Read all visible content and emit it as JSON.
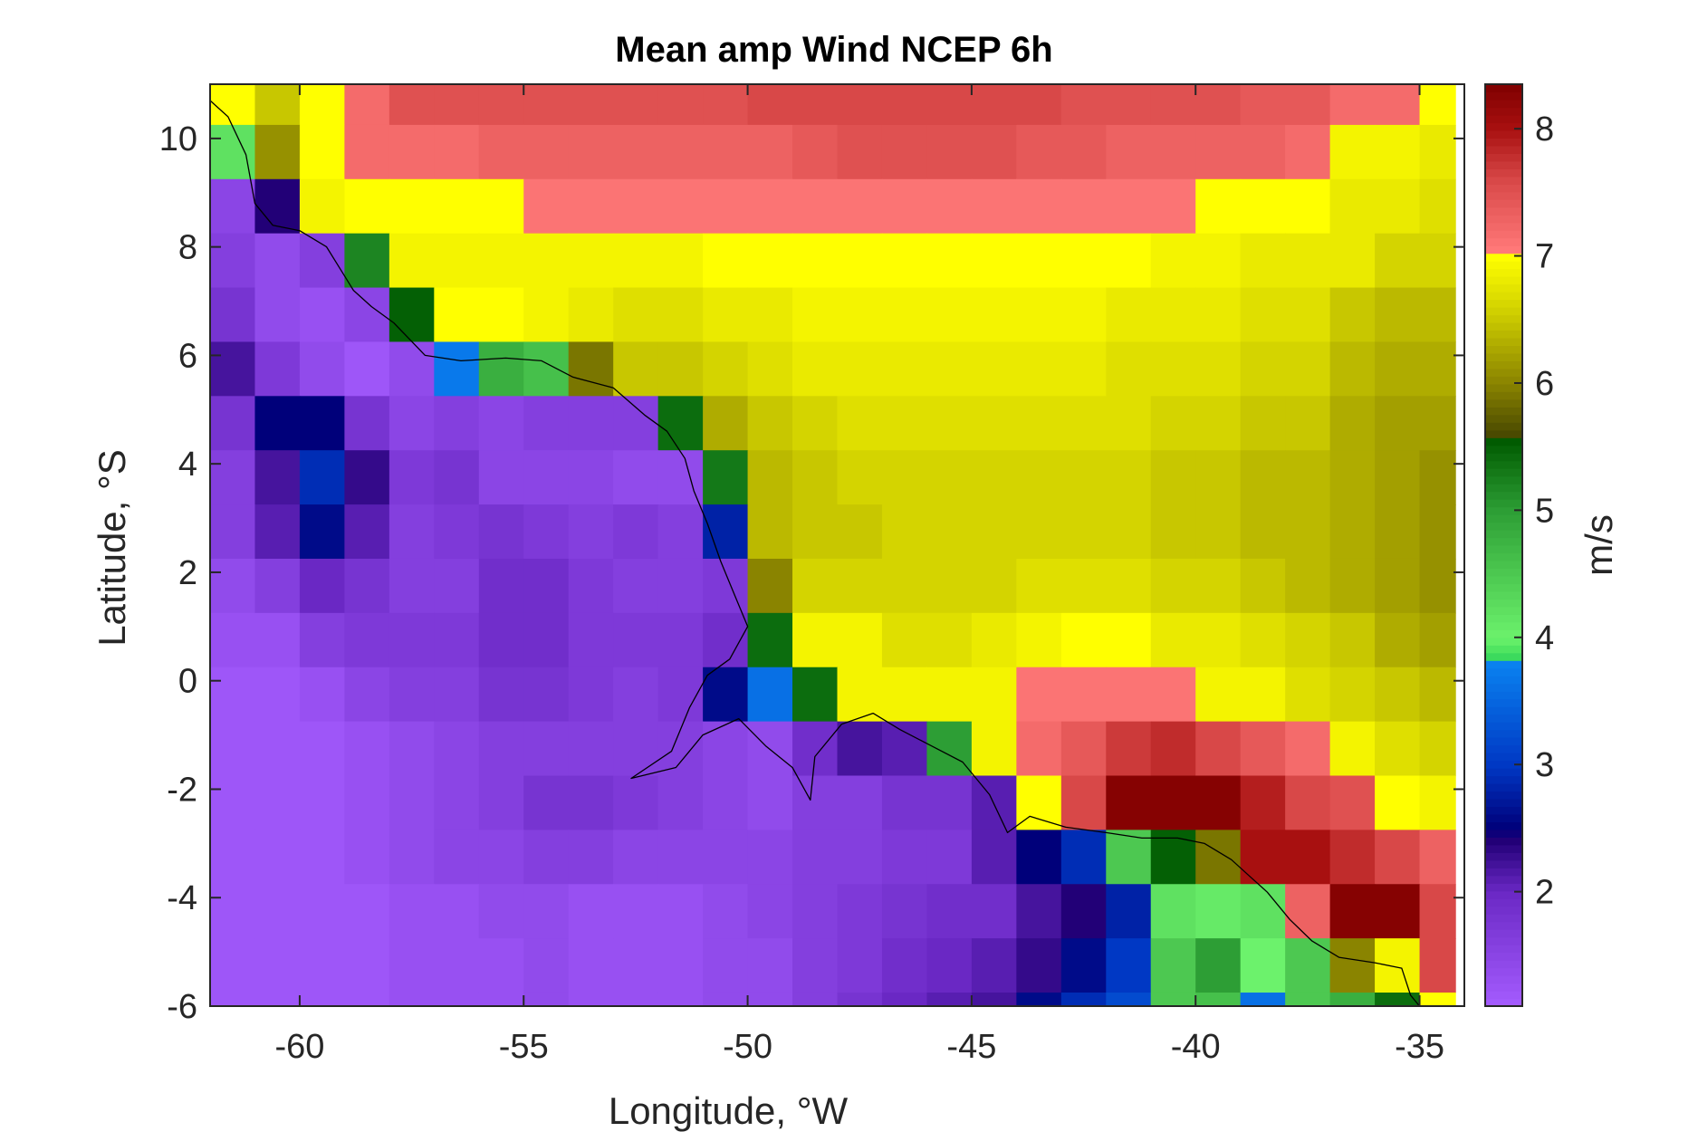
{
  "chart_data": {
    "type": "heatmap",
    "title": "Mean amp Wind NCEP 6h",
    "xlabel": "Longitude, °W",
    "ylabel": "Latitude, °S",
    "colorbar_label": "m/s",
    "xlim": [
      -62,
      -34
    ],
    "ylim": [
      -6,
      11
    ],
    "x_ticks": [
      -60,
      -55,
      -50,
      -45,
      -40,
      -35
    ],
    "x_tick_labels": [
      "-60",
      "-55",
      "-50",
      "-45",
      "-40",
      "-35"
    ],
    "y_ticks": [
      -6,
      -4,
      -2,
      0,
      2,
      4,
      6,
      8,
      10
    ],
    "y_tick_labels": [
      "-6",
      "-4",
      "-2",
      "0",
      "2",
      "4",
      "6",
      "8",
      "10"
    ],
    "colorbar_range": [
      1.1,
      8.35
    ],
    "colorbar_ticks": [
      2,
      3,
      4,
      5,
      6,
      7,
      8
    ],
    "colorbar_tick_labels": [
      "2",
      "3",
      "4",
      "5",
      "6",
      "7",
      "8"
    ],
    "color_stops": [
      {
        "value": 1.1,
        "color": "#a55cff"
      },
      {
        "value": 2.0,
        "color": "#6a28c4"
      },
      {
        "value": 2.4,
        "color": "#220077"
      },
      {
        "value": 2.5,
        "color": "#00007a"
      },
      {
        "value": 3.0,
        "color": "#0038c4"
      },
      {
        "value": 3.8,
        "color": "#0a82f0"
      },
      {
        "value": 3.85,
        "color": "#3ddc5a"
      },
      {
        "value": 4.0,
        "color": "#6cf26c"
      },
      {
        "value": 5.0,
        "color": "#2d9e35"
      },
      {
        "value": 5.55,
        "color": "#005a00"
      },
      {
        "value": 5.6,
        "color": "#4a4a00"
      },
      {
        "value": 6.0,
        "color": "#8a8400"
      },
      {
        "value": 6.6,
        "color": "#d4d400"
      },
      {
        "value": 7.0,
        "color": "#ffff00"
      },
      {
        "value": 7.05,
        "color": "#ff7878"
      },
      {
        "value": 7.6,
        "color": "#d84848"
      },
      {
        "value": 8.0,
        "color": "#a81010"
      },
      {
        "value": 8.35,
        "color": "#800000"
      }
    ],
    "grid": {
      "lon_edges": [
        -62,
        -61,
        -60,
        -59,
        -58,
        -57,
        -56,
        -55,
        -54,
        -53,
        -52,
        -51,
        -50,
        -49,
        -48,
        -47,
        -46,
        -45,
        -44,
        -43,
        -42,
        -41,
        -40,
        -39,
        -38,
        -37,
        -36,
        -35,
        -34.2
      ],
      "lat_edges": [
        11,
        10.25,
        9.25,
        8.25,
        7.25,
        6.25,
        5.25,
        4.25,
        3.25,
        2.25,
        1.25,
        0.25,
        -0.75,
        -1.75,
        -2.75,
        -3.75,
        -4.75,
        -5.75,
        -6
      ],
      "rows": [
        [
          7.0,
          6.5,
          7.0,
          7.2,
          7.5,
          7.5,
          7.5,
          7.5,
          7.5,
          7.5,
          7.5,
          7.5,
          7.6,
          7.6,
          7.6,
          7.6,
          7.6,
          7.6,
          7.6,
          7.5,
          7.5,
          7.5,
          7.5,
          7.4,
          7.4,
          7.2,
          7.2,
          7.0
        ],
        [
          4.2,
          6.1,
          7.0,
          7.2,
          7.2,
          7.2,
          7.3,
          7.3,
          7.3,
          7.3,
          7.3,
          7.3,
          7.3,
          7.4,
          7.5,
          7.5,
          7.5,
          7.5,
          7.4,
          7.4,
          7.3,
          7.3,
          7.3,
          7.3,
          7.2,
          6.9,
          6.9,
          6.8
        ],
        [
          1.5,
          2.4,
          6.9,
          7.0,
          7.0,
          7.0,
          7.0,
          7.1,
          7.1,
          7.1,
          7.1,
          7.1,
          7.1,
          7.1,
          7.1,
          7.1,
          7.1,
          7.1,
          7.1,
          7.1,
          7.1,
          7.1,
          7.0,
          7.0,
          7.0,
          6.8,
          6.8,
          6.7
        ],
        [
          1.6,
          1.4,
          1.6,
          5.2,
          6.9,
          6.9,
          6.9,
          6.9,
          6.9,
          6.9,
          6.9,
          7.0,
          7.0,
          7.0,
          7.0,
          7.0,
          7.0,
          7.0,
          7.0,
          7.0,
          7.0,
          6.9,
          6.9,
          6.8,
          6.8,
          6.8,
          6.6,
          6.6
        ],
        [
          1.8,
          1.4,
          1.3,
          1.5,
          5.5,
          7.0,
          7.0,
          6.9,
          6.8,
          6.7,
          6.7,
          6.8,
          6.8,
          6.9,
          6.9,
          6.9,
          6.9,
          6.9,
          6.9,
          6.9,
          6.8,
          6.8,
          6.8,
          6.7,
          6.7,
          6.5,
          6.4,
          6.4
        ],
        [
          2.2,
          1.7,
          1.4,
          1.2,
          1.4,
          3.7,
          4.8,
          4.6,
          5.9,
          6.5,
          6.5,
          6.6,
          6.7,
          6.8,
          6.8,
          6.8,
          6.8,
          6.8,
          6.8,
          6.8,
          6.7,
          6.7,
          6.7,
          6.6,
          6.6,
          6.4,
          6.3,
          6.3
        ],
        [
          1.8,
          2.5,
          2.5,
          1.8,
          1.5,
          1.6,
          1.5,
          1.6,
          1.6,
          1.6,
          5.4,
          6.3,
          6.5,
          6.6,
          6.7,
          6.7,
          6.7,
          6.7,
          6.7,
          6.7,
          6.7,
          6.6,
          6.6,
          6.5,
          6.5,
          6.3,
          6.2,
          6.2
        ],
        [
          1.6,
          2.2,
          2.9,
          2.3,
          1.7,
          1.8,
          1.5,
          1.5,
          1.5,
          1.4,
          1.4,
          5.3,
          6.4,
          6.5,
          6.6,
          6.6,
          6.6,
          6.6,
          6.6,
          6.6,
          6.6,
          6.5,
          6.5,
          6.4,
          6.4,
          6.3,
          6.2,
          6.1
        ],
        [
          1.6,
          2.1,
          2.6,
          2.1,
          1.6,
          1.7,
          1.8,
          1.7,
          1.6,
          1.7,
          1.6,
          2.8,
          6.4,
          6.5,
          6.5,
          6.6,
          6.6,
          6.6,
          6.6,
          6.6,
          6.6,
          6.5,
          6.5,
          6.4,
          6.4,
          6.3,
          6.2,
          6.1
        ],
        [
          1.4,
          1.6,
          2.0,
          1.8,
          1.6,
          1.6,
          1.9,
          1.9,
          1.7,
          1.6,
          1.6,
          1.7,
          6.0,
          6.6,
          6.6,
          6.6,
          6.6,
          6.6,
          6.7,
          6.7,
          6.7,
          6.6,
          6.6,
          6.5,
          6.4,
          6.3,
          6.2,
          6.1
        ],
        [
          1.3,
          1.3,
          1.6,
          1.7,
          1.7,
          1.7,
          1.9,
          1.9,
          1.7,
          1.7,
          1.7,
          1.9,
          5.4,
          6.9,
          6.9,
          6.7,
          6.7,
          6.8,
          6.9,
          7.0,
          7.0,
          6.8,
          6.8,
          6.7,
          6.6,
          6.5,
          6.3,
          6.2
        ],
        [
          1.2,
          1.2,
          1.3,
          1.5,
          1.6,
          1.6,
          1.8,
          1.8,
          1.7,
          1.6,
          1.7,
          2.6,
          3.6,
          5.4,
          6.9,
          6.9,
          6.9,
          6.9,
          7.1,
          7.1,
          7.1,
          7.1,
          6.9,
          6.9,
          6.7,
          6.6,
          6.5,
          6.4
        ],
        [
          1.2,
          1.2,
          1.2,
          1.3,
          1.4,
          1.5,
          1.6,
          1.6,
          1.6,
          1.6,
          1.6,
          1.5,
          1.4,
          1.9,
          2.2,
          2.1,
          5.0,
          6.9,
          7.2,
          7.4,
          7.7,
          7.8,
          7.6,
          7.4,
          7.2,
          6.9,
          6.7,
          6.6
        ],
        [
          1.2,
          1.2,
          1.2,
          1.3,
          1.4,
          1.5,
          1.6,
          1.8,
          1.8,
          1.7,
          1.6,
          1.5,
          1.4,
          1.6,
          1.6,
          1.8,
          1.8,
          2.1,
          7.0,
          7.6,
          8.3,
          8.3,
          8.3,
          7.9,
          7.6,
          7.5,
          7.0,
          6.9
        ],
        [
          1.2,
          1.2,
          1.2,
          1.3,
          1.4,
          1.5,
          1.5,
          1.6,
          1.6,
          1.5,
          1.5,
          1.5,
          1.5,
          1.6,
          1.6,
          1.7,
          1.7,
          2.1,
          2.5,
          2.9,
          4.5,
          5.5,
          5.9,
          8.0,
          8.0,
          7.8,
          7.6,
          7.3
        ],
        [
          1.2,
          1.2,
          1.2,
          1.2,
          1.3,
          1.3,
          1.4,
          1.4,
          1.3,
          1.3,
          1.3,
          1.4,
          1.5,
          1.6,
          1.7,
          1.8,
          1.9,
          1.9,
          2.2,
          2.4,
          2.8,
          4.2,
          4.1,
          4.2,
          7.3,
          8.3,
          8.3,
          7.6
        ],
        [
          1.2,
          1.2,
          1.2,
          1.2,
          1.3,
          1.3,
          1.3,
          1.4,
          1.3,
          1.3,
          1.3,
          1.4,
          1.4,
          1.6,
          1.7,
          1.9,
          2.0,
          2.1,
          2.3,
          2.6,
          3.0,
          4.5,
          5.0,
          4.0,
          4.5,
          6.0,
          6.9,
          7.6
        ],
        [
          1.2,
          1.2,
          1.2,
          1.2,
          1.3,
          1.3,
          1.3,
          1.4,
          1.3,
          1.3,
          1.3,
          1.4,
          1.4,
          1.6,
          1.8,
          2.0,
          2.1,
          2.2,
          2.6,
          2.9,
          3.2,
          4.5,
          4.6,
          3.6,
          4.5,
          4.8,
          5.4,
          7.0
        ]
      ]
    },
    "coastline": [
      [
        -62.0,
        10.7
      ],
      [
        -61.6,
        10.4
      ],
      [
        -61.2,
        9.7
      ],
      [
        -61.0,
        8.8
      ],
      [
        -60.6,
        8.4
      ],
      [
        -60.0,
        8.3
      ],
      [
        -59.4,
        8.0
      ],
      [
        -58.8,
        7.2
      ],
      [
        -58.4,
        6.9
      ],
      [
        -57.9,
        6.6
      ],
      [
        -57.2,
        6.0
      ],
      [
        -56.4,
        5.9
      ],
      [
        -55.4,
        5.95
      ],
      [
        -54.6,
        5.9
      ],
      [
        -53.9,
        5.6
      ],
      [
        -53.0,
        5.4
      ],
      [
        -52.3,
        4.9
      ],
      [
        -51.8,
        4.6
      ],
      [
        -51.4,
        4.1
      ],
      [
        -51.2,
        3.5
      ],
      [
        -50.9,
        2.9
      ],
      [
        -50.6,
        2.2
      ],
      [
        -50.3,
        1.6
      ],
      [
        -50.0,
        1.0
      ],
      [
        -50.4,
        0.4
      ],
      [
        -50.9,
        0.1
      ],
      [
        -51.3,
        -0.5
      ],
      [
        -51.7,
        -1.3
      ],
      [
        -52.6,
        -1.8
      ],
      [
        -51.6,
        -1.6
      ],
      [
        -51.0,
        -1.0
      ],
      [
        -50.2,
        -0.7
      ],
      [
        -49.6,
        -1.2
      ],
      [
        -49.0,
        -1.6
      ],
      [
        -48.6,
        -2.2
      ],
      [
        -48.5,
        -1.4
      ],
      [
        -47.9,
        -0.8
      ],
      [
        -47.2,
        -0.6
      ],
      [
        -46.6,
        -0.9
      ],
      [
        -45.9,
        -1.2
      ],
      [
        -45.2,
        -1.5
      ],
      [
        -44.6,
        -2.1
      ],
      [
        -44.2,
        -2.8
      ],
      [
        -43.7,
        -2.5
      ],
      [
        -42.9,
        -2.7
      ],
      [
        -42.0,
        -2.8
      ],
      [
        -41.2,
        -2.9
      ],
      [
        -40.4,
        -2.9
      ],
      [
        -39.8,
        -3.0
      ],
      [
        -39.2,
        -3.3
      ],
      [
        -38.8,
        -3.6
      ],
      [
        -38.4,
        -3.9
      ],
      [
        -37.9,
        -4.4
      ],
      [
        -37.4,
        -4.8
      ],
      [
        -36.8,
        -5.1
      ],
      [
        -36.0,
        -5.2
      ],
      [
        -35.4,
        -5.3
      ],
      [
        -35.2,
        -5.8
      ],
      [
        -35.0,
        -6.0
      ]
    ]
  }
}
